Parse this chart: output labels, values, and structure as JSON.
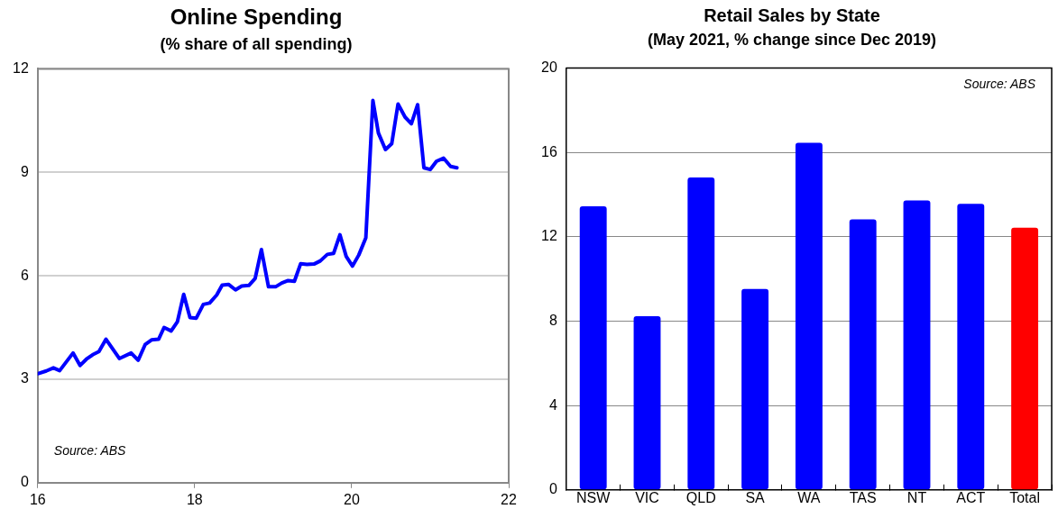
{
  "chart_data": [
    {
      "type": "line",
      "title": "Online Spending",
      "subtitle": "(% share of all spending)",
      "color": "#0000ff",
      "marker": "none",
      "line_style": "solid",
      "x": [
        16.0,
        16.11,
        16.2,
        16.28,
        16.45,
        16.54,
        16.62,
        16.7,
        16.78,
        16.87,
        17.04,
        17.19,
        17.28,
        17.37,
        17.45,
        17.54,
        17.61,
        17.7,
        17.78,
        17.86,
        17.94,
        18.02,
        18.11,
        18.19,
        18.28,
        18.35,
        18.43,
        18.52,
        18.6,
        18.69,
        18.77,
        18.85,
        18.94,
        19.03,
        19.11,
        19.19,
        19.27,
        19.35,
        19.43,
        19.52,
        19.6,
        19.69,
        19.77,
        19.85,
        19.93,
        20.01,
        20.09,
        20.18,
        20.27,
        20.34,
        20.43,
        20.51,
        20.59,
        20.68,
        20.76,
        20.84,
        20.92,
        21.0,
        21.08,
        21.17,
        21.26,
        21.34
      ],
      "values": [
        3.16,
        3.24,
        3.33,
        3.25,
        3.76,
        3.4,
        3.58,
        3.71,
        3.8,
        4.16,
        3.6,
        3.76,
        3.55,
        4.01,
        4.14,
        4.16,
        4.5,
        4.4,
        4.67,
        5.46,
        4.79,
        4.77,
        5.17,
        5.21,
        5.44,
        5.73,
        5.75,
        5.59,
        5.7,
        5.72,
        5.92,
        6.76,
        5.68,
        5.68,
        5.79,
        5.86,
        5.84,
        6.35,
        6.33,
        6.34,
        6.43,
        6.62,
        6.65,
        7.19,
        6.56,
        6.28,
        6.6,
        7.1,
        11.08,
        10.14,
        9.66,
        9.83,
        10.98,
        10.6,
        10.41,
        10.96,
        9.13,
        9.08,
        9.32,
        9.41,
        9.17,
        9.13
      ],
      "xlim": [
        16,
        22
      ],
      "xticks": [
        16,
        18,
        20,
        22
      ],
      "ylim": [
        0,
        12
      ],
      "yticks": [
        0,
        3,
        6,
        9,
        12
      ],
      "grid": "y",
      "annotations": [
        "Source: ABS"
      ]
    },
    {
      "type": "bar",
      "title": "Retail Sales by State",
      "subtitle": "(May 2021, % change since Dec 2019)",
      "categories": [
        "NSW",
        "VIC",
        "QLD",
        "SA",
        "WA",
        "TAS",
        "NT",
        "ACT",
        "Total"
      ],
      "values": [
        13.45,
        8.24,
        14.81,
        9.53,
        16.46,
        12.83,
        13.72,
        13.57,
        12.43
      ],
      "colors": [
        "#0000ff",
        "#0000ff",
        "#0000ff",
        "#0000ff",
        "#0000ff",
        "#0000ff",
        "#0000ff",
        "#0000ff",
        "#ff0000"
      ],
      "ylim": [
        0,
        20
      ],
      "yticks": [
        0,
        4,
        8,
        12,
        16,
        20
      ],
      "grid": "y",
      "annotations": [
        "Source: ABS"
      ]
    }
  ]
}
